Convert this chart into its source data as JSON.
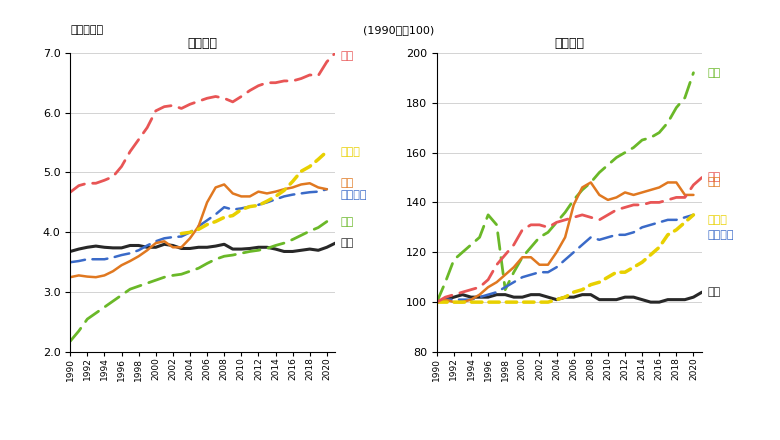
{
  "years": [
    1990,
    1991,
    1992,
    1993,
    1994,
    1995,
    1996,
    1997,
    1998,
    1999,
    2000,
    2001,
    2002,
    2003,
    2004,
    2005,
    2006,
    2007,
    2008,
    2009,
    2010,
    2011,
    2012,
    2013,
    2014,
    2015,
    2016,
    2017,
    2018,
    2019,
    2020,
    2021
  ],
  "left_title": "＜実額＞",
  "right_title": "＜指数＞",
  "left_ylabel": "（万ドル）",
  "right_ylabel": "(1990年＝100)",
  "left_ylim": [
    2.0,
    7.0
  ],
  "right_ylim": [
    80,
    200
  ],
  "left_yticks": [
    2.0,
    3.0,
    4.0,
    5.0,
    6.0,
    7.0
  ],
  "right_yticks": [
    80,
    100,
    120,
    140,
    160,
    180,
    200
  ],
  "colors": {
    "usa": "#e85555",
    "germany": "#e8d000",
    "uk": "#e07820",
    "france": "#3a6ac8",
    "korea": "#6ab828",
    "japan": "#282828"
  },
  "labels": {
    "usa": "米国",
    "germany": "ドイツ",
    "uk": "英国",
    "france": "フランス",
    "korea": "韓国",
    "japan": "日本"
  },
  "left_data": {
    "usa": [
      4.67,
      4.78,
      4.82,
      4.82,
      4.87,
      4.93,
      5.1,
      5.35,
      5.55,
      5.75,
      6.03,
      6.1,
      6.12,
      6.07,
      6.14,
      6.19,
      6.24,
      6.27,
      6.24,
      6.18,
      6.27,
      6.37,
      6.45,
      6.5,
      6.5,
      6.53,
      6.53,
      6.57,
      6.63,
      6.62,
      6.85,
      7.0
    ],
    "germany": [
      null,
      null,
      null,
      null,
      null,
      null,
      null,
      null,
      null,
      null,
      null,
      null,
      null,
      3.98,
      4.0,
      4.05,
      4.13,
      4.18,
      4.25,
      4.28,
      4.38,
      4.43,
      4.45,
      4.52,
      4.6,
      4.7,
      4.85,
      5.02,
      5.1,
      5.22,
      5.35,
      null
    ],
    "uk": [
      3.25,
      3.28,
      3.26,
      3.25,
      3.28,
      3.35,
      3.45,
      3.52,
      3.6,
      3.7,
      3.82,
      3.85,
      3.75,
      3.75,
      3.9,
      4.1,
      4.5,
      4.75,
      4.8,
      4.65,
      4.6,
      4.6,
      4.68,
      4.65,
      4.68,
      4.72,
      4.75,
      4.8,
      4.82,
      4.75,
      4.72,
      null
    ],
    "france": [
      3.5,
      3.52,
      3.55,
      3.55,
      3.55,
      3.58,
      3.62,
      3.65,
      3.7,
      3.78,
      3.85,
      3.9,
      3.92,
      3.93,
      4.0,
      4.1,
      4.2,
      4.3,
      4.42,
      4.38,
      4.4,
      4.43,
      4.46,
      4.5,
      4.55,
      4.6,
      4.63,
      4.65,
      4.67,
      4.68,
      4.72,
      null
    ],
    "korea": [
      2.18,
      2.35,
      2.55,
      2.65,
      2.75,
      2.85,
      2.95,
      3.05,
      3.1,
      3.15,
      3.2,
      3.25,
      3.28,
      3.3,
      3.35,
      3.4,
      3.48,
      3.55,
      3.6,
      3.62,
      3.65,
      3.68,
      3.7,
      3.73,
      3.78,
      3.82,
      3.88,
      3.95,
      4.02,
      4.08,
      4.18,
      null
    ],
    "japan": [
      3.68,
      3.72,
      3.75,
      3.77,
      3.75,
      3.74,
      3.74,
      3.78,
      3.78,
      3.75,
      3.75,
      3.8,
      3.78,
      3.73,
      3.73,
      3.75,
      3.75,
      3.77,
      3.8,
      3.72,
      3.72,
      3.73,
      3.75,
      3.75,
      3.72,
      3.68,
      3.68,
      3.7,
      3.72,
      3.7,
      3.75,
      3.82
    ]
  },
  "right_data": {
    "usa": [
      100,
      102,
      103,
      104,
      105,
      106,
      109,
      115,
      119,
      123,
      129,
      131,
      131,
      130,
      132,
      133,
      134,
      135,
      134,
      133,
      135,
      137,
      138,
      139,
      139,
      140,
      140,
      141,
      142,
      142,
      147,
      150
    ],
    "germany": [
      100,
      100,
      100,
      100,
      100,
      100,
      100,
      100,
      100,
      100,
      100,
      100,
      100,
      100,
      101,
      102,
      104,
      105,
      107,
      108,
      110,
      112,
      112,
      114,
      116,
      119,
      122,
      127,
      129,
      132,
      135,
      null
    ],
    "uk": [
      100,
      101,
      100,
      100,
      101,
      103,
      106,
      108,
      111,
      114,
      118,
      118,
      115,
      115,
      120,
      126,
      139,
      146,
      148,
      143,
      141,
      142,
      144,
      143,
      144,
      145,
      146,
      148,
      148,
      143,
      143,
      null
    ],
    "france": [
      100,
      101,
      101,
      101,
      101,
      102,
      103,
      104,
      106,
      108,
      110,
      111,
      112,
      112,
      114,
      117,
      120,
      123,
      126,
      125,
      126,
      127,
      127,
      128,
      130,
      131,
      132,
      133,
      133,
      134,
      135,
      null
    ],
    "korea": [
      100,
      108,
      117,
      120,
      123,
      126,
      135,
      131,
      105,
      112,
      118,
      122,
      126,
      128,
      132,
      136,
      141,
      145,
      148,
      152,
      155,
      158,
      160,
      162,
      165,
      166,
      168,
      172,
      178,
      182,
      192,
      null
    ],
    "japan": [
      100,
      101,
      102,
      103,
      102,
      102,
      102,
      103,
      103,
      102,
      102,
      103,
      103,
      102,
      101,
      102,
      102,
      103,
      103,
      101,
      101,
      101,
      102,
      102,
      101,
      100,
      100,
      101,
      101,
      101,
      102,
      104
    ]
  }
}
